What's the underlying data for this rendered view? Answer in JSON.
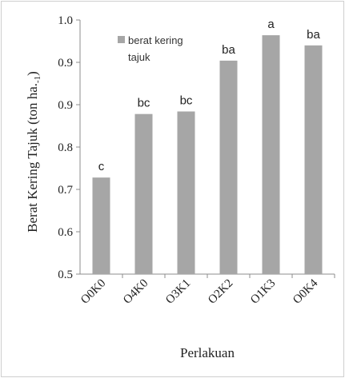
{
  "chart_data": {
    "type": "bar",
    "categories": [
      "O0K0",
      "O4K0",
      "O3K1",
      "O2K2",
      "O1K3",
      "O0K4"
    ],
    "values": [
      0.69,
      0.815,
      0.82,
      0.92,
      0.97,
      0.95
    ],
    "bar_labels": [
      "c",
      "bc",
      "bc",
      "ba",
      "a",
      "ba"
    ],
    "y_ticks": [
      "0.5",
      "0.6",
      "0.7",
      "0.8",
      "0.9",
      "0.9",
      "1.0"
    ],
    "ylim": [
      0.5,
      1.0
    ],
    "ylabel": "Berat Kering Tajuk (ton ha.",
    "ylabel_sub": "-1",
    "ylabel_end": ")",
    "xlabel": "Perlakuan",
    "legend": {
      "line1": "berat kering",
      "line2": "tajuk"
    },
    "colors": {
      "bar": "#a6a6a6",
      "axis": "#8c8c8c"
    },
    "grid": false,
    "legend_position": "top-left"
  }
}
